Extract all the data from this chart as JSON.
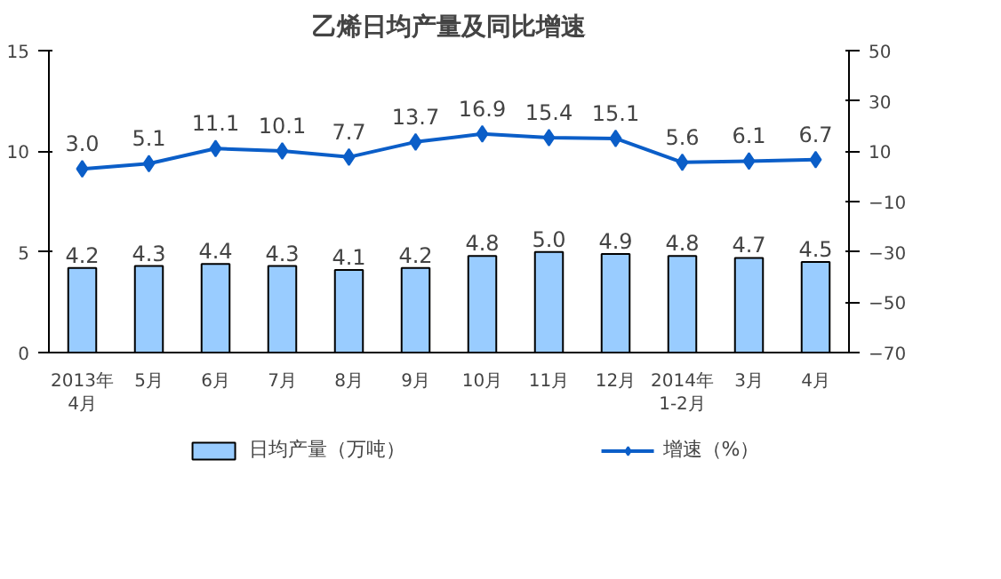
{
  "chart_data": {
    "type": "bar",
    "title": "乙烯日均产量及同比增速",
    "categories": [
      "2013年\n4月",
      "5月",
      "6月",
      "7月",
      "8月",
      "9月",
      "10月",
      "11月",
      "12月",
      "2014年\n1-2月",
      "3月",
      "4月"
    ],
    "series": [
      {
        "name": "日均产量（万吨）",
        "color": "#99ccff",
        "values": [
          4.2,
          4.3,
          4.4,
          4.3,
          4.1,
          4.2,
          4.8,
          5.0,
          4.9,
          4.8,
          4.7,
          4.5
        ],
        "value_labels": [
          "4.2",
          "4.3",
          "4.4",
          "4.3",
          "4.1",
          "4.2",
          "4.8",
          "5.0",
          "4.9",
          "4.8",
          "4.7",
          "4.5"
        ]
      },
      {
        "name": "增速（%）",
        "type": "line",
        "axis": "y2",
        "color": "#0b5ec8",
        "values": [
          3.0,
          5.1,
          11.1,
          10.1,
          7.7,
          13.7,
          16.9,
          15.4,
          15.1,
          5.6,
          6.1,
          6.7
        ],
        "value_labels": [
          "3.0",
          "5.1",
          "11.1",
          "10.1",
          "7.7",
          "13.7",
          "16.9",
          "15.4",
          "15.1",
          "5.6",
          "6.1",
          "6.7"
        ]
      }
    ],
    "ylim": [
      0,
      15
    ],
    "yticks": [
      0,
      5,
      10,
      15
    ],
    "y2lim": [
      -70,
      50
    ],
    "y2ticks": [
      -70,
      -50,
      -30,
      -10,
      10,
      30,
      50
    ],
    "grid": false,
    "legend": "bottom",
    "marker": "diamond"
  }
}
